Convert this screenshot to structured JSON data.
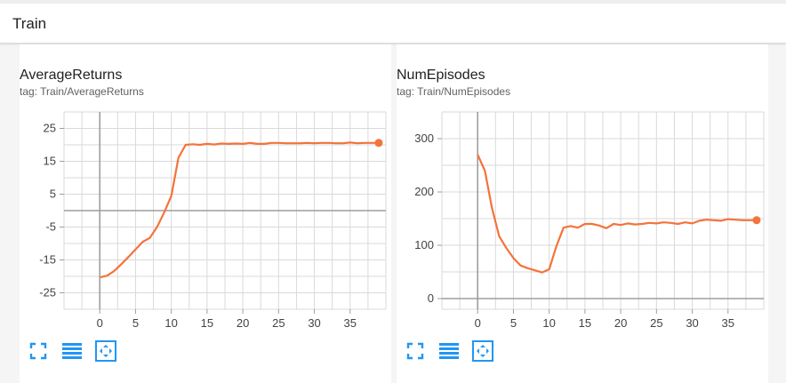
{
  "section": {
    "title": "Train"
  },
  "charts": [
    {
      "title": "AverageReturns",
      "tag": "tag: Train/AverageReturns",
      "controls": [
        "fit-screen-icon",
        "data-table-icon",
        "fit-domain-icon"
      ]
    },
    {
      "title": "NumEpisodes",
      "tag": "tag: Train/NumEpisodes",
      "controls": [
        "fit-screen-icon",
        "data-table-icon",
        "fit-domain-icon"
      ]
    }
  ],
  "colors": {
    "series": "#f4733a",
    "grid": "#d9d9d9",
    "axis": "#9e9e9e",
    "accent": "#2196f3"
  },
  "chart_data": [
    {
      "type": "line",
      "title": "AverageReturns",
      "xlabel": "",
      "ylabel": "",
      "xlim": [
        -5,
        40
      ],
      "ylim": [
        -30,
        30
      ],
      "xticks": [
        0,
        5,
        10,
        15,
        20,
        25,
        30,
        35
      ],
      "yticks": [
        25,
        15,
        5,
        -5,
        -15,
        -25
      ],
      "grid": true,
      "series": [
        {
          "x": [
            0,
            1,
            2,
            3,
            4,
            5,
            6,
            7,
            8,
            9,
            10,
            11,
            12,
            13,
            14,
            15,
            16,
            17,
            18,
            19,
            20,
            21,
            22,
            23,
            24,
            25,
            26,
            27,
            28,
            29,
            30,
            31,
            32,
            33,
            34,
            35,
            36,
            37,
            38,
            39
          ],
          "values": [
            -20.3,
            -19.8,
            -18.4,
            -16.3,
            -14.1,
            -11.8,
            -9.5,
            -8.3,
            -5.0,
            -0.6,
            4.5,
            16.1,
            20.0,
            20.2,
            20.0,
            20.3,
            20.1,
            20.4,
            20.3,
            20.4,
            20.3,
            20.6,
            20.3,
            20.3,
            20.6,
            20.6,
            20.5,
            20.5,
            20.5,
            20.6,
            20.5,
            20.6,
            20.6,
            20.5,
            20.5,
            20.7,
            20.5,
            20.6,
            20.6,
            20.6
          ]
        }
      ]
    },
    {
      "type": "line",
      "title": "NumEpisodes",
      "xlabel": "",
      "ylabel": "",
      "xlim": [
        -5,
        40
      ],
      "ylim": [
        -20,
        350
      ],
      "xticks": [
        0,
        5,
        10,
        15,
        20,
        25,
        30,
        35
      ],
      "yticks": [
        300,
        200,
        100,
        0
      ],
      "grid": true,
      "series": [
        {
          "x": [
            0,
            1,
            2,
            3,
            4,
            5,
            6,
            7,
            8,
            9,
            10,
            11,
            12,
            13,
            14,
            15,
            16,
            17,
            18,
            19,
            20,
            21,
            22,
            23,
            24,
            25,
            26,
            27,
            28,
            29,
            30,
            31,
            32,
            33,
            34,
            35,
            36,
            37,
            38,
            39
          ],
          "values": [
            270,
            240,
            170,
            117,
            95,
            76,
            62,
            57,
            53,
            49,
            55,
            98,
            133,
            136,
            133,
            140,
            140,
            137,
            132,
            140,
            138,
            141,
            139,
            140,
            142,
            141,
            143,
            142,
            140,
            143,
            141,
            146,
            148,
            147,
            146,
            149,
            148,
            147,
            147,
            147
          ]
        }
      ]
    }
  ]
}
